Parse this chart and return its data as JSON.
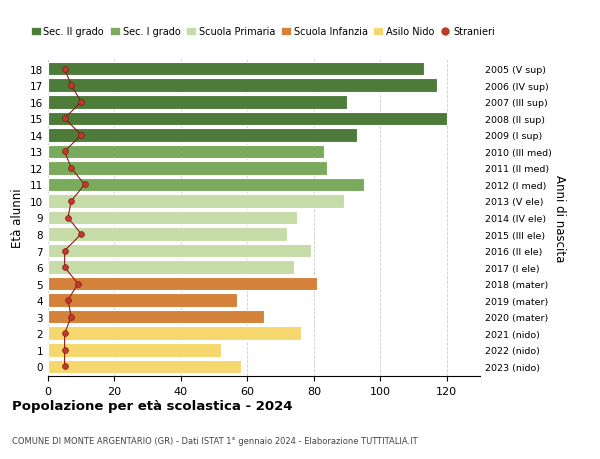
{
  "ages": [
    0,
    1,
    2,
    3,
    4,
    5,
    6,
    7,
    8,
    9,
    10,
    11,
    12,
    13,
    14,
    15,
    16,
    17,
    18
  ],
  "bar_values": [
    58,
    52,
    76,
    65,
    57,
    81,
    74,
    79,
    72,
    75,
    89,
    95,
    84,
    83,
    93,
    120,
    90,
    117,
    113
  ],
  "bar_colors": [
    "#f5d76e",
    "#f5d76e",
    "#f5d76e",
    "#d4813a",
    "#d4813a",
    "#d4813a",
    "#c5dba8",
    "#c5dba8",
    "#c5dba8",
    "#c5dba8",
    "#c5dba8",
    "#7aaa5c",
    "#7aaa5c",
    "#7aaa5c",
    "#4d7c3a",
    "#4d7c3a",
    "#4d7c3a",
    "#4d7c3a",
    "#4d7c3a"
  ],
  "right_labels": [
    "2023 (nido)",
    "2022 (nido)",
    "2021 (nido)",
    "2020 (mater)",
    "2019 (mater)",
    "2018 (mater)",
    "2017 (I ele)",
    "2016 (II ele)",
    "2015 (III ele)",
    "2014 (IV ele)",
    "2013 (V ele)",
    "2012 (I med)",
    "2011 (II med)",
    "2010 (III med)",
    "2009 (I sup)",
    "2008 (II sup)",
    "2007 (III sup)",
    "2006 (IV sup)",
    "2005 (V sup)"
  ],
  "stranieri_values": [
    5,
    5,
    5,
    7,
    6,
    9,
    5,
    5,
    10,
    6,
    7,
    11,
    7,
    5,
    10,
    5,
    10,
    7,
    5
  ],
  "legend_labels": [
    "Sec. II grado",
    "Sec. I grado",
    "Scuola Primaria",
    "Scuola Infanzia",
    "Asilo Nido",
    "Stranieri"
  ],
  "legend_colors": [
    "#4d7c3a",
    "#7aaa5c",
    "#c5dba8",
    "#d4813a",
    "#f5d76e",
    "#c0392b"
  ],
  "title": "Popolazione per età scolastica - 2024",
  "subtitle": "COMUNE DI MONTE ARGENTARIO (GR) - Dati ISTAT 1° gennaio 2024 - Elaborazione TUTTITALIA.IT",
  "ylabel": "Età alunni",
  "right_ylabel": "Anni di nascita",
  "bg_color": "#ffffff",
  "grid_color": "#cccccc",
  "bar_height": 0.82,
  "xlim": [
    0,
    130
  ],
  "xticks": [
    0,
    20,
    40,
    60,
    80,
    100,
    120
  ]
}
